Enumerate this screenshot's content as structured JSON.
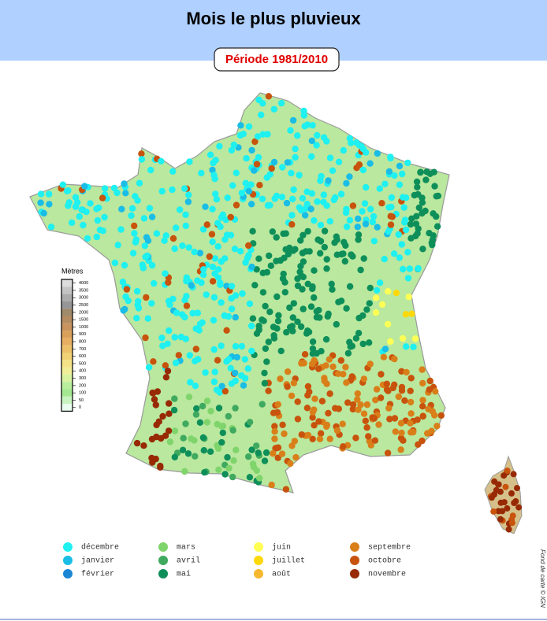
{
  "header": {
    "title": "Mois le plus pluvieux",
    "period": "Période 1981/2010"
  },
  "elevation_legend": {
    "title": "Mètres",
    "ticks": [
      4000,
      3500,
      3000,
      2500,
      2000,
      1500,
      1000,
      900,
      800,
      700,
      600,
      500,
      400,
      300,
      200,
      100,
      50,
      0
    ],
    "colors": [
      "#dcdcdc",
      "#c4c4c4",
      "#acacac",
      "#969696",
      "#a08a6c",
      "#b48c62",
      "#c8935e",
      "#d9a05c",
      "#e6ae62",
      "#edc06a",
      "#f1d274",
      "#f4e286",
      "#f0ee98",
      "#d8f2a0",
      "#b8ee9c",
      "#a4e892",
      "#c8f4c0",
      "#eafff0"
    ]
  },
  "legend": [
    {
      "label": "décembre",
      "color": "#1ff0f0"
    },
    {
      "label": "janvier",
      "color": "#19bde6"
    },
    {
      "label": "février",
      "color": "#1a86d4"
    },
    {
      "label": "mars",
      "color": "#80d46c"
    },
    {
      "label": "avril",
      "color": "#3ea95f"
    },
    {
      "label": "mai",
      "color": "#0e8f5a"
    },
    {
      "label": "juin",
      "color": "#ffff55"
    },
    {
      "label": "juillet",
      "color": "#ffd80a"
    },
    {
      "label": "août",
      "color": "#f6b82e"
    },
    {
      "label": "septembre",
      "color": "#d97f1a"
    },
    {
      "label": "octobre",
      "color": "#c8530c"
    },
    {
      "label": "novembre",
      "color": "#972a05"
    }
  ],
  "credit": "Fond de carte © IGN"
}
